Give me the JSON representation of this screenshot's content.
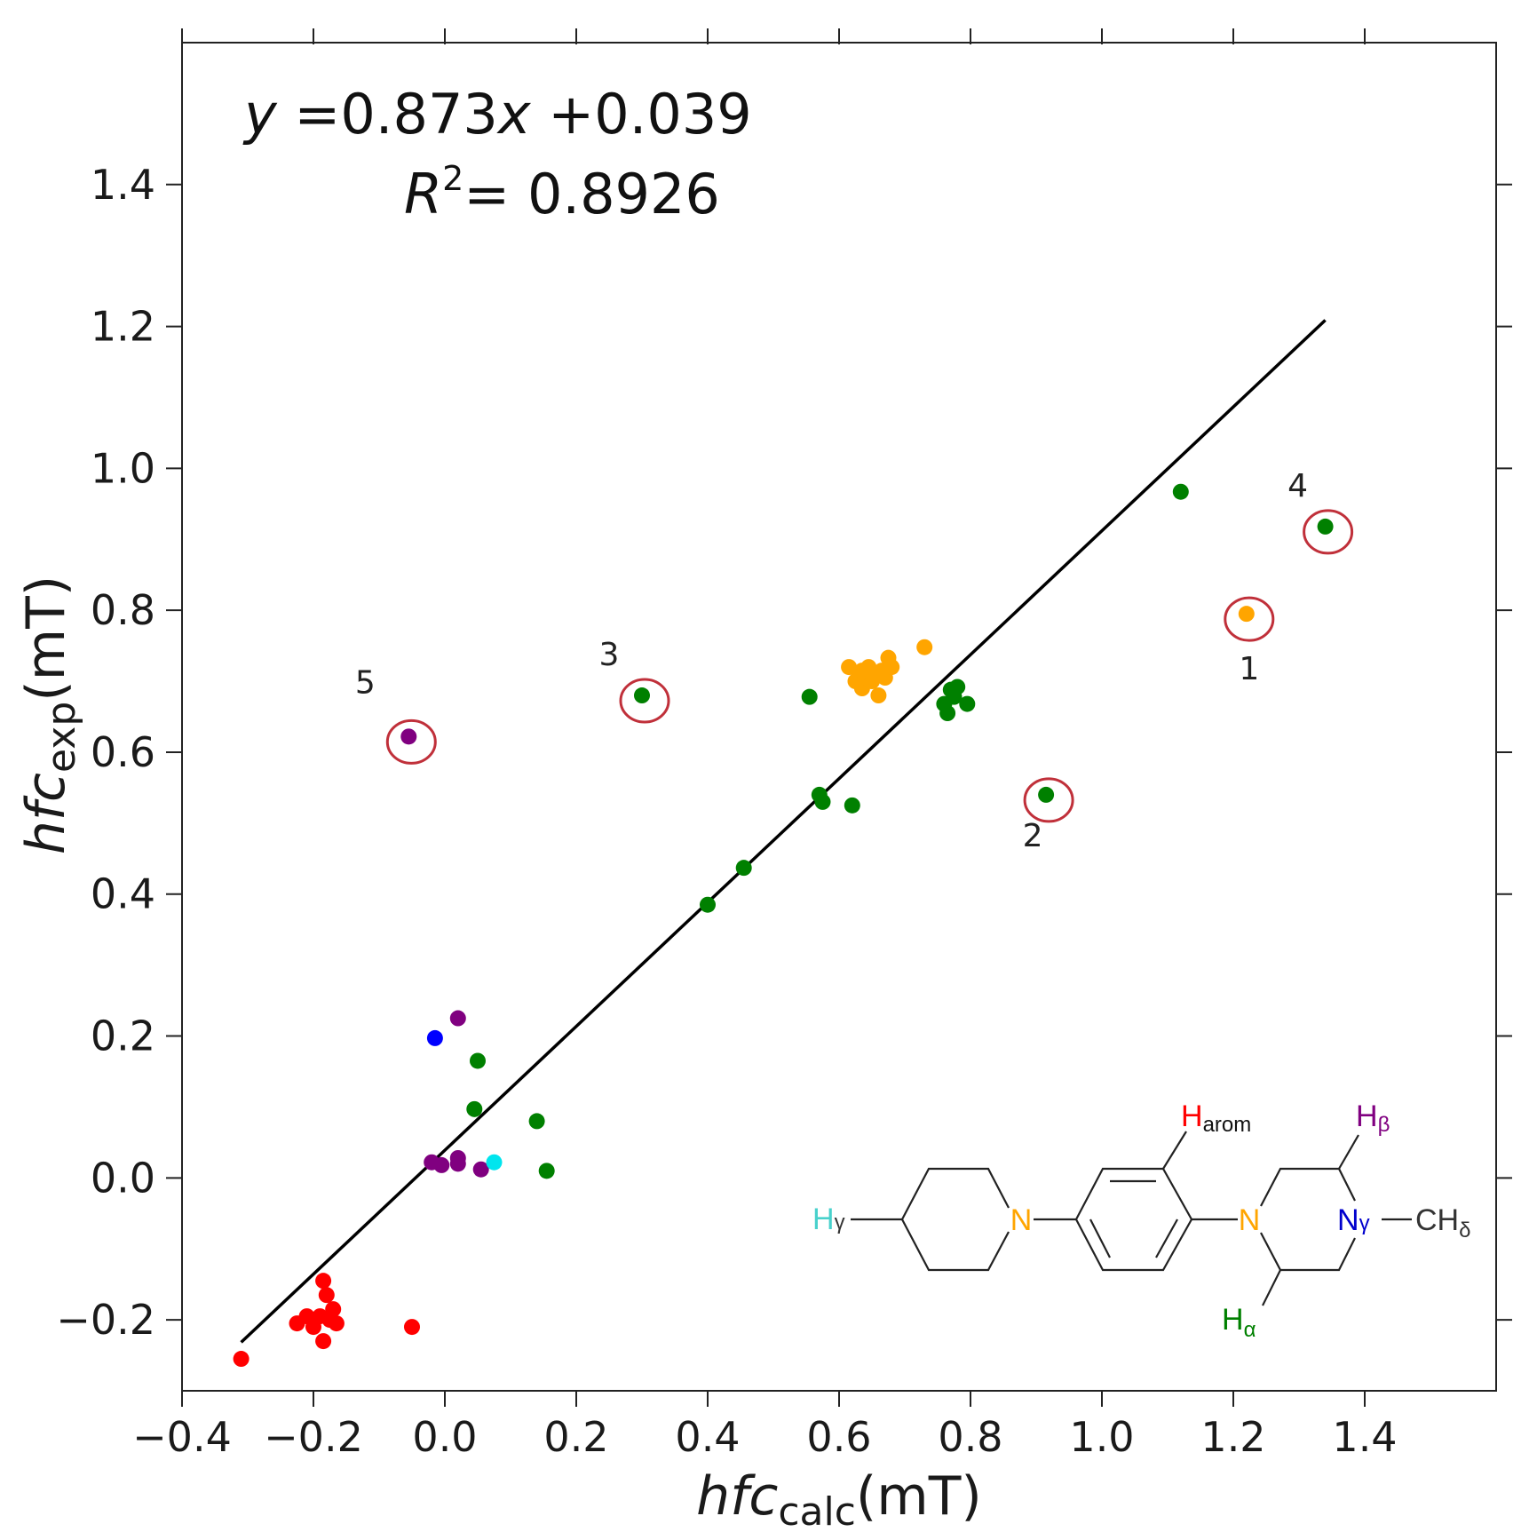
{
  "chart_data": {
    "type": "scatter",
    "xlim": [
      -0.4,
      1.6
    ],
    "ylim": [
      -0.3,
      1.6
    ],
    "x_ticks": [
      -0.4,
      -0.2,
      0.0,
      0.2,
      0.4,
      0.6,
      0.8,
      1.0,
      1.2,
      1.4
    ],
    "x_tick_labels": [
      "−0.4",
      "−0.2",
      "0.0",
      "0.2",
      "0.4",
      "0.6",
      "0.8",
      "1.0",
      "1.2",
      "1.4"
    ],
    "y_ticks": [
      -0.2,
      0.0,
      0.2,
      0.4,
      0.6,
      0.8,
      1.0,
      1.2,
      1.4
    ],
    "y_tick_labels": [
      "−0.2",
      "0.0",
      "0.2",
      "0.4",
      "0.6",
      "0.8",
      "1.0",
      "1.2",
      "1.4"
    ],
    "xlabel": {
      "main": "hfc",
      "sub": "calc",
      "unit": "(mT)"
    },
    "ylabel": {
      "main": "hfc",
      "sub": "exp",
      "unit": "(mT)"
    },
    "grid": false,
    "fit": {
      "equation_var": "y",
      "equation_rest": " =0.873",
      "equation_x": "x",
      "equation_tail": " +0.039",
      "r2_var": "R",
      "r2_sup": "2",
      "r2_rest": "= 0.8926",
      "slope": 0.873,
      "intercept": 0.039,
      "x_range": [
        -0.31,
        1.34
      ],
      "color": "#000000"
    },
    "series": [
      {
        "color": "#ff0000",
        "points": [
          [
            -0.31,
            -0.255
          ],
          [
            -0.225,
            -0.205
          ],
          [
            -0.21,
            -0.195
          ],
          [
            -0.2,
            -0.21
          ],
          [
            -0.19,
            -0.195
          ],
          [
            -0.185,
            -0.145
          ],
          [
            -0.18,
            -0.165
          ],
          [
            -0.175,
            -0.2
          ],
          [
            -0.17,
            -0.185
          ],
          [
            -0.165,
            -0.205
          ],
          [
            -0.185,
            -0.23
          ],
          [
            -0.05,
            -0.21
          ]
        ]
      },
      {
        "color": "#800080",
        "points": [
          [
            -0.055,
            0.622
          ],
          [
            0.02,
            0.225
          ],
          [
            -0.02,
            0.022
          ],
          [
            -0.005,
            0.018
          ],
          [
            0.02,
            0.028
          ],
          [
            0.02,
            0.02
          ],
          [
            0.055,
            0.012
          ]
        ]
      },
      {
        "color": "#0000ff",
        "points": [
          [
            -0.015,
            0.197
          ]
        ]
      },
      {
        "color": "#00e5ee",
        "points": [
          [
            0.075,
            0.022
          ]
        ]
      },
      {
        "color": "#008000",
        "points": [
          [
            0.05,
            0.165
          ],
          [
            0.045,
            0.097
          ],
          [
            0.14,
            0.08
          ],
          [
            0.155,
            0.01
          ],
          [
            0.3,
            0.68
          ],
          [
            0.4,
            0.385
          ],
          [
            0.455,
            0.437
          ],
          [
            0.555,
            0.678
          ],
          [
            0.57,
            0.54
          ],
          [
            0.575,
            0.53
          ],
          [
            0.62,
            0.525
          ],
          [
            0.76,
            0.668
          ],
          [
            0.765,
            0.655
          ],
          [
            0.77,
            0.688
          ],
          [
            0.775,
            0.678
          ],
          [
            0.78,
            0.692
          ],
          [
            0.795,
            0.668
          ],
          [
            0.915,
            0.54
          ],
          [
            1.12,
            0.967
          ],
          [
            1.34,
            0.918
          ]
        ]
      },
      {
        "color": "#ffa500",
        "points": [
          [
            0.615,
            0.72
          ],
          [
            0.625,
            0.7
          ],
          [
            0.63,
            0.712
          ],
          [
            0.635,
            0.69
          ],
          [
            0.64,
            0.705
          ],
          [
            0.645,
            0.72
          ],
          [
            0.65,
            0.7
          ],
          [
            0.655,
            0.71
          ],
          [
            0.66,
            0.68
          ],
          [
            0.665,
            0.715
          ],
          [
            0.67,
            0.705
          ],
          [
            0.675,
            0.733
          ],
          [
            0.68,
            0.72
          ],
          [
            0.635,
            0.715
          ],
          [
            0.73,
            0.748
          ],
          [
            1.22,
            0.795
          ]
        ]
      }
    ],
    "outliers": [
      {
        "label": "1",
        "x": 1.22,
        "y": 0.795
      },
      {
        "label": "2",
        "x": 0.915,
        "y": 0.54
      },
      {
        "label": "3",
        "x": 0.3,
        "y": 0.68
      },
      {
        "label": "4",
        "x": 1.34,
        "y": 0.918
      },
      {
        "label": "5",
        "x": -0.055,
        "y": 0.622
      }
    ],
    "outlier_circle_color": "#c0303a"
  },
  "molecule": {
    "h_gamma": {
      "text": "H",
      "sub": "γ",
      "color": "#48d1cc"
    },
    "n_left": {
      "text": "N",
      "color": "#ffa500"
    },
    "h_arom": {
      "text": "H",
      "sub": "arom",
      "color": "#ff0000"
    },
    "n_right": {
      "text": "N",
      "color": "#ffa500"
    },
    "h_beta": {
      "text": "H",
      "sub": "β",
      "color": "#800080"
    },
    "n_gamma": {
      "text": "N",
      "sub": "γ",
      "color": "#0000cd"
    },
    "ch_delta": {
      "text": "CH",
      "sub": "δ",
      "color": "#333333"
    },
    "h_alpha": {
      "text": "H",
      "sub": "α",
      "color": "#008000"
    }
  }
}
